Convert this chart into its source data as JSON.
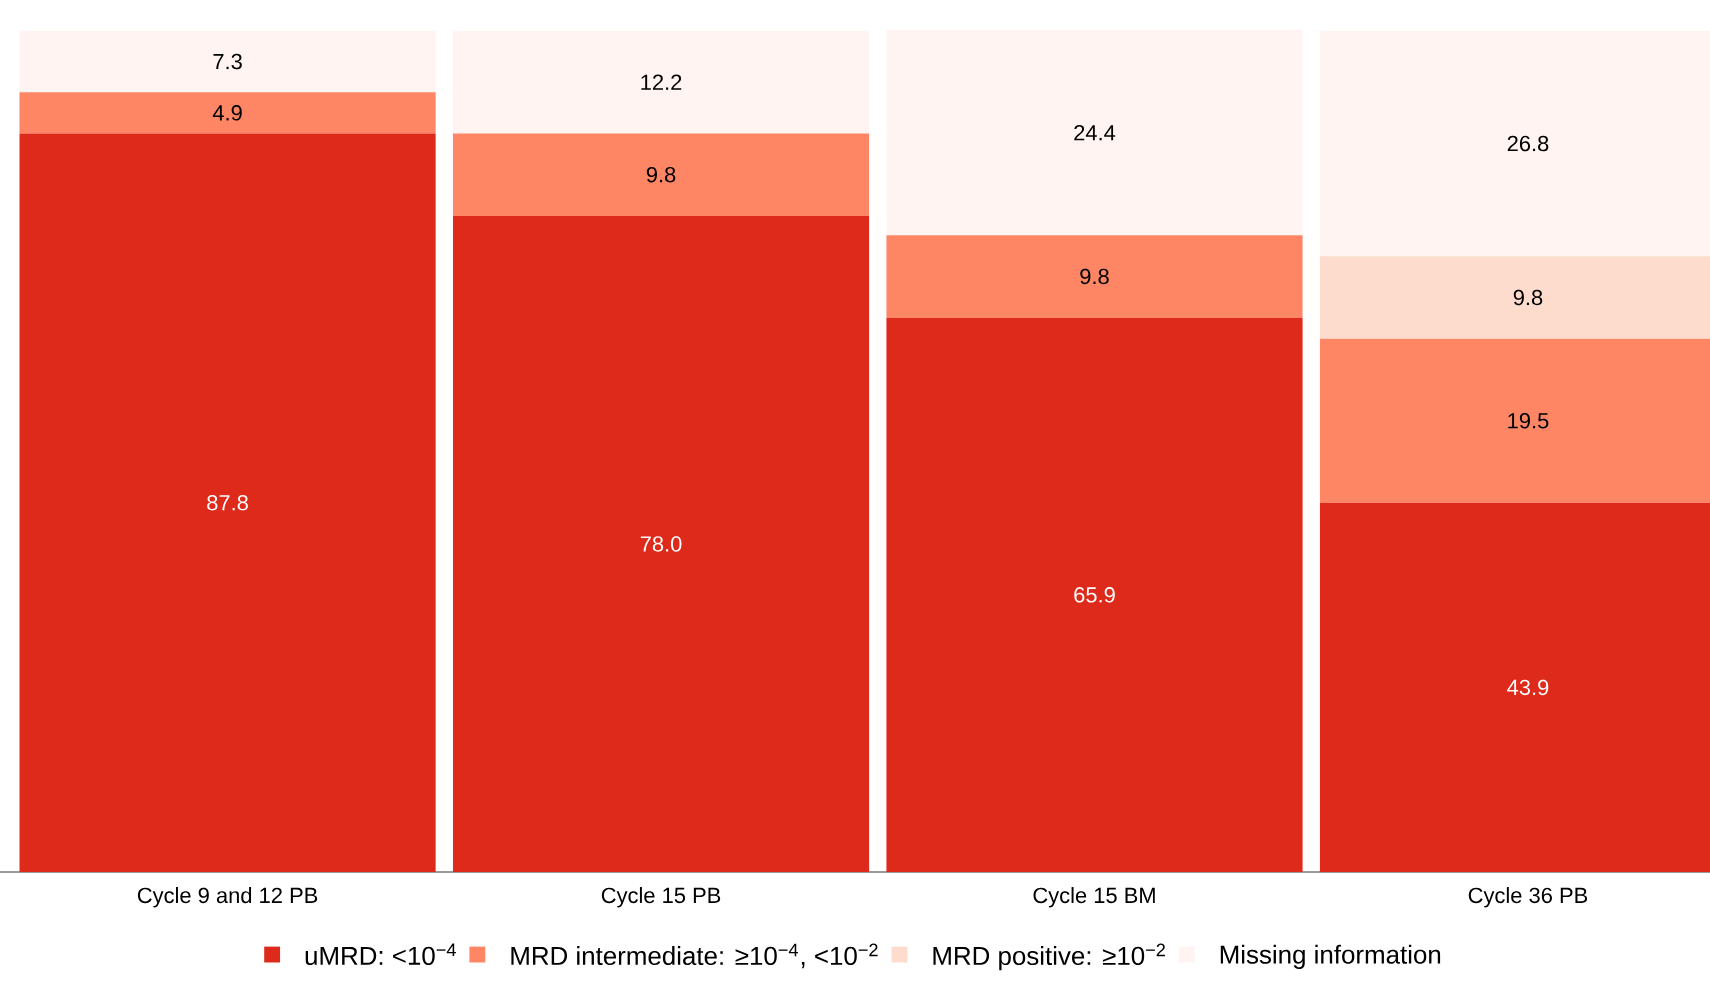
{
  "chart_data": {
    "type": "bar",
    "stacked": true,
    "legend": "bottom",
    "categories": [
      "Cycle 9 and 12 PB",
      "Cycle 15 PB",
      "Cycle 15 BM",
      "Cycle 36 PB"
    ],
    "series": [
      {
        "name": "uMRD: <10$^{−4}$",
        "color": "#de2a1b",
        "values": [
          87.8,
          78.0,
          65.9,
          43.9
        ],
        "value_labels": [
          "87.8",
          "78.0",
          "65.9",
          "43.9"
        ]
      },
      {
        "name": "MRD intermediate: ≥10$^{−4}$, <10$^{−2}$",
        "color": "#fe8664",
        "values": [
          4.9,
          9.8,
          9.8,
          19.5
        ],
        "value_labels": [
          "4.9",
          "9.8",
          "9.8",
          "19.5"
        ]
      },
      {
        "name": "MRD positive: ≥10$^{−2}$",
        "color": "#fddccd",
        "values": [
          null,
          null,
          null,
          9.8
        ],
        "value_labels": [
          null,
          null,
          null,
          "9.8"
        ]
      },
      {
        "name": "Missing information",
        "color": "#fff4f1",
        "values": [
          7.3,
          12.2,
          24.4,
          26.8
        ],
        "value_labels": [
          "7.3",
          "12.2",
          "24.4",
          "26.8"
        ]
      }
    ]
  }
}
